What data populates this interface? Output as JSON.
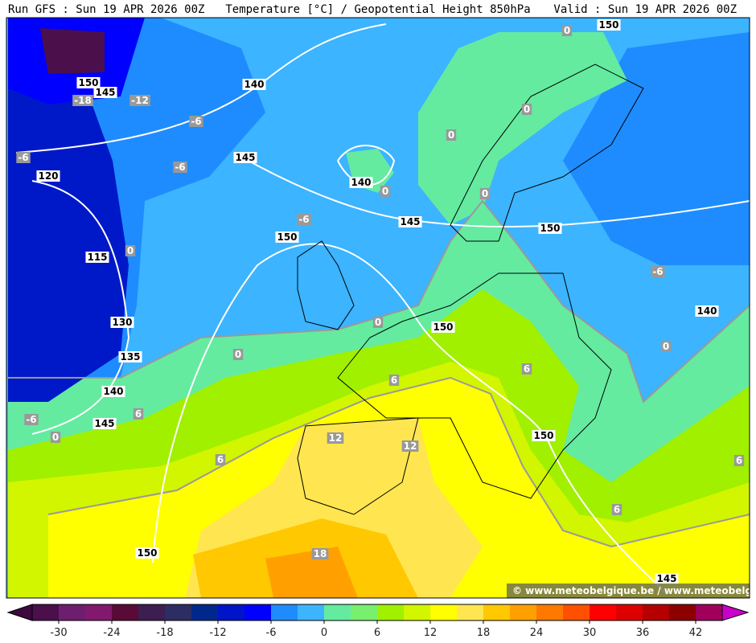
{
  "header": {
    "run": "Run GFS : Sun 19 APR 2026 00Z",
    "title": "Temperature [°C] / Geopotential Height 850hPa",
    "valid": "Valid : Sun 19 APR 2026 00Z"
  },
  "watermark": "© www.meteobelgique.be / www.meteobelgie.be",
  "height_labels": [
    "150",
    "145",
    "140",
    "150",
    "145",
    "120",
    "140",
    "145",
    "150",
    "150",
    "115",
    "140",
    "130",
    "150",
    "135",
    "140",
    "145",
    "150",
    "150",
    "145"
  ],
  "temperature_labels": [
    "-18",
    "-12",
    "-6",
    "0",
    "0",
    "0",
    "-6",
    "-6",
    "0",
    "0",
    "-6",
    "0",
    "-6",
    "0",
    "0",
    "0",
    "6",
    "6",
    "6",
    "-6",
    "0",
    "12",
    "12",
    "6",
    "6",
    "6",
    "18"
  ],
  "colorbar": {
    "xlim": [
      -33,
      45
    ],
    "ticks": [
      -30,
      -24,
      -18,
      -12,
      -6,
      0,
      6,
      12,
      18,
      24,
      30,
      36,
      42
    ],
    "colors": [
      "#3c0a3c",
      "#4b0f4b",
      "#6e1e6e",
      "#82196e",
      "#5a0a37",
      "#3c1e50",
      "#2d2d64",
      "#00288c",
      "#0014c8",
      "#0000ff",
      "#1e8cff",
      "#3cb4ff",
      "#64eba0",
      "#78f06e",
      "#a0f000",
      "#d2f500",
      "#ffff00",
      "#ffe650",
      "#ffc800",
      "#ffa000",
      "#ff7800",
      "#ff5000",
      "#ff0000",
      "#dc0000",
      "#b40000",
      "#8c0000",
      "#a0005a",
      "#c800c8"
    ]
  }
}
